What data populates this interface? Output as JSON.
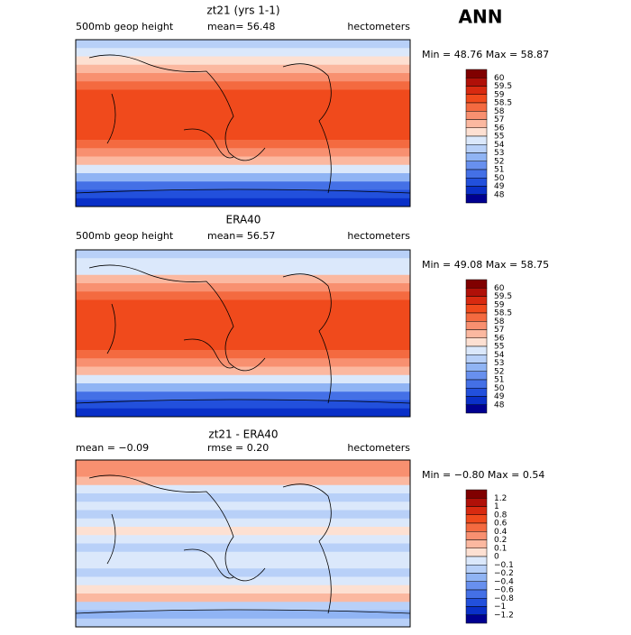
{
  "header": {
    "title": "ANN"
  },
  "palette": [
    "#800000",
    "#b01008",
    "#d82a10",
    "#f04a1c",
    "#f46a40",
    "#f89070",
    "#fbb8a0",
    "#fde0d2",
    "#dbe8fb",
    "#b8d0f8",
    "#90b4f4",
    "#6890ee",
    "#4470e6",
    "#2250dc",
    "#0a30c8",
    "#000090"
  ],
  "panels": [
    {
      "title": "zt21 (yrs 1-1)",
      "left": "500mb geop height",
      "middle": "mean=  56.48",
      "right": "hectometers",
      "minmax": "Min =  48.76 Max =  58.87",
      "levels": [
        "60",
        "59.5",
        "59",
        "58.5",
        "58",
        "57",
        "56",
        "55",
        "54",
        "53",
        "52",
        "51",
        "50",
        "49",
        "48"
      ]
    },
    {
      "title": "ERA40",
      "left": "500mb geop height",
      "middle": "mean=  56.57",
      "right": "hectometers",
      "minmax": "Min =  49.08 Max =  58.75",
      "levels": [
        "60",
        "59.5",
        "59",
        "58.5",
        "58",
        "57",
        "56",
        "55",
        "54",
        "53",
        "52",
        "51",
        "50",
        "49",
        "48"
      ]
    },
    {
      "title": "zt21 - ERA40",
      "left": "mean =  −0.09",
      "middle": "rmse =    0.20",
      "right": "hectometers",
      "minmax": "Min =  −0.80 Max =    0.54",
      "levels": [
        "1.2",
        "1",
        "0.8",
        "0.6",
        "0.4",
        "0.2",
        "0.1",
        "0",
        "−0.1",
        "−0.2",
        "−0.4",
        "−0.6",
        "−0.8",
        "−1",
        "−1.2"
      ]
    }
  ]
}
